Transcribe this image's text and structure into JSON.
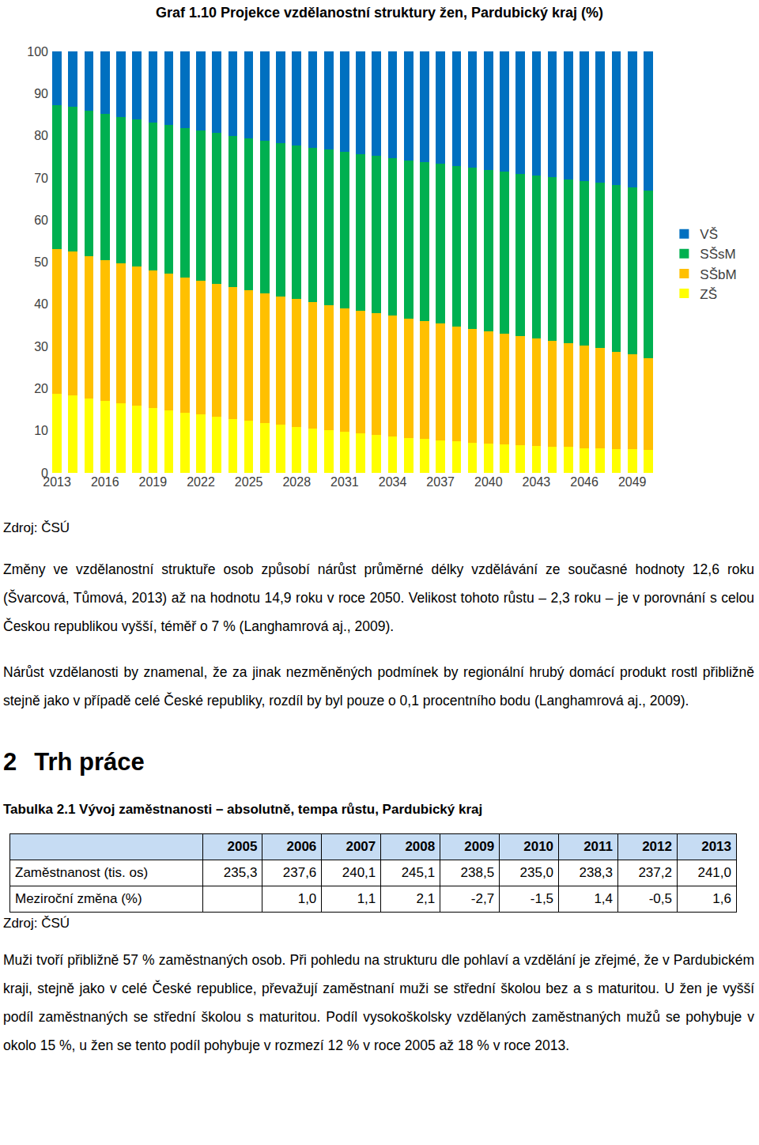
{
  "chart_data": {
    "type": "bar",
    "title": "Graf 1.10 Projekce vzdělanostní struktury žen, Pardubický kraj (%)",
    "stacked": true,
    "grid": false,
    "legend": "right",
    "categories": [
      "2013",
      null,
      null,
      "2016",
      null,
      null,
      "2019",
      null,
      null,
      "2022",
      null,
      null,
      "2025",
      null,
      null,
      "2028",
      null,
      null,
      "2031",
      null,
      null,
      "2034",
      null,
      null,
      "2037",
      null,
      null,
      "2040",
      null,
      null,
      "2043",
      null,
      null,
      "2046",
      null,
      null,
      "2049",
      null
    ],
    "ylim": [
      0,
      100
    ],
    "yticks": [
      0,
      10,
      20,
      30,
      40,
      50,
      60,
      70,
      80,
      90,
      100
    ],
    "series": [
      {
        "name": "ZŠ",
        "color": "#FFFF00",
        "values": [
          18.8,
          18.4,
          17.7,
          17.1,
          16.6,
          16.0,
          15.4,
          14.9,
          14.3,
          13.8,
          13.3,
          12.8,
          12.3,
          11.8,
          11.4,
          10.9,
          10.5,
          10.1,
          9.7,
          9.3,
          9.0,
          8.6,
          8.3,
          8.0,
          7.7,
          7.5,
          7.2,
          7.0,
          6.8,
          6.6,
          6.4,
          6.2,
          6.1,
          5.9,
          5.8,
          5.7,
          5.6,
          5.5
        ]
      },
      {
        "name": "SŠbM",
        "color": "#FFC000",
        "values": [
          34.3,
          34.1,
          33.7,
          33.4,
          33.1,
          32.9,
          32.7,
          32.3,
          32.1,
          31.8,
          31.5,
          31.3,
          31.0,
          30.8,
          30.5,
          30.3,
          30.0,
          29.7,
          29.4,
          29.2,
          28.9,
          28.7,
          28.3,
          28.0,
          27.7,
          27.3,
          27.0,
          26.6,
          26.2,
          25.8,
          25.5,
          25.1,
          24.7,
          24.3,
          23.9,
          23.0,
          22.6,
          21.7
        ]
      },
      {
        "name": "SŠsM",
        "color": "#00B050",
        "values": [
          34.1,
          34.3,
          34.5,
          34.6,
          34.8,
          34.9,
          35.1,
          35.3,
          35.4,
          35.6,
          35.8,
          35.9,
          36.1,
          36.2,
          36.4,
          36.5,
          36.7,
          36.9,
          37.0,
          37.2,
          37.3,
          37.4,
          37.6,
          37.7,
          37.9,
          38.0,
          38.2,
          38.3,
          38.4,
          38.6,
          38.7,
          38.8,
          38.9,
          39.1,
          39.2,
          39.5,
          39.6,
          39.8
        ]
      },
      {
        "name": "VŠ",
        "color": "#0070C0",
        "values": [
          12.8,
          13.2,
          14.1,
          14.9,
          15.5,
          16.2,
          16.8,
          17.5,
          18.2,
          18.8,
          19.4,
          20.0,
          20.6,
          21.2,
          21.7,
          22.3,
          22.8,
          23.3,
          23.9,
          24.3,
          24.8,
          25.3,
          25.8,
          26.3,
          26.7,
          27.2,
          27.6,
          28.1,
          28.6,
          29.0,
          29.4,
          29.9,
          30.3,
          30.7,
          31.1,
          31.8,
          32.2,
          33.0
        ]
      }
    ]
  },
  "document": {
    "chart_source": "Zdroj: ČSÚ",
    "paragraphs_before": [
      "Změny ve vzdělanostní struktuře osob způsobí nárůst průměrné délky vzdělávání ze současné hodnoty 12,6 roku (Švarcová, Tůmová, 2013) až na hodnotu 14,9 roku v roce 2050. Velikost tohoto růstu – 2,3 roku – je v porovnání s celou Českou republikou vyšší, téměř o 7 % (Langhamrová aj., 2009).",
      "Nárůst vzdělanosti by znamenal, že za jinak nezměněných podmínek by regionální hrubý domácí produkt rostl přibližně stejně jako v případě celé České republiky, rozdíl by byl pouze o 0,1 procentního bodu (Langhamrová aj., 2009)."
    ],
    "heading": {
      "number": "2",
      "title": "Trh práce"
    },
    "table_caption": "Tabulka 2.1 Vývoj zaměstnanosti – absolutně, tempa růstu, Pardubický kraj",
    "table": {
      "header": [
        null,
        "2005",
        "2006",
        "2007",
        "2008",
        "2009",
        "2010",
        "2011",
        "2012",
        "2013"
      ],
      "rows": [
        [
          "Zaměstnanost (tis. os)",
          "235,3",
          "237,6",
          "240,1",
          "245,1",
          "238,5",
          "235,0",
          "238,3",
          "237,2",
          "241,0"
        ],
        [
          "Meziroční změna (%)",
          null,
          "1,0",
          "1,1",
          "2,1",
          "-2,7",
          "-1,5",
          "1,4",
          "-0,5",
          "1,6"
        ]
      ]
    },
    "table_source": "Zdroj: ČSÚ",
    "paragraphs_after": [
      "Muži tvoří přibližně 57 % zaměstnaných osob. Při pohledu na strukturu dle pohlaví a vzdělání je zřejmé, že v Pardubickém kraji, stejně jako v celé České republice, převažují zaměstnaní muži se střední školou bez a s maturitou. U žen je vyšší podíl zaměstnaných se střední školou s maturitou. Podíl vysokoškolsky vzdělaných zaměstnaných mužů se pohybuje v okolo 15 %, u žen se tento podíl pohybuje v rozmezí 12 % v roce 2005 až 18 % v roce 2013."
    ]
  }
}
